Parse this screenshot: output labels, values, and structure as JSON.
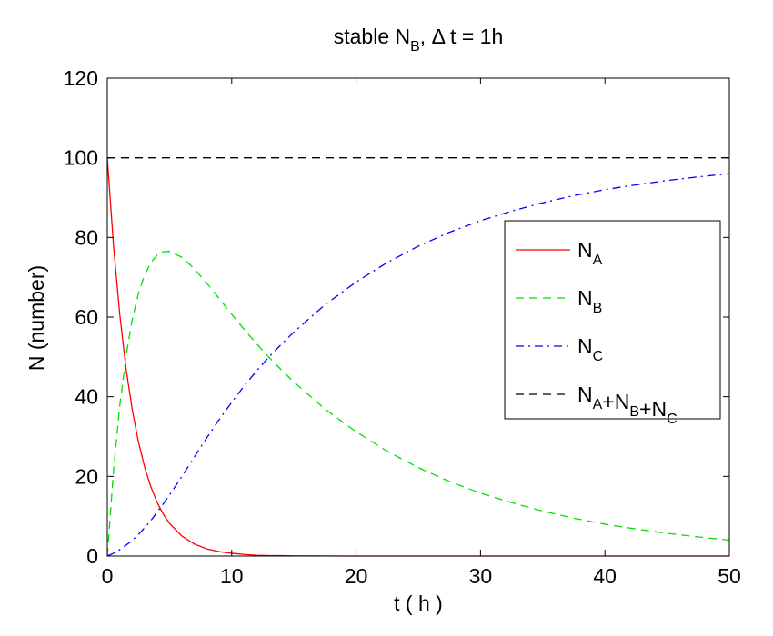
{
  "chart_data": {
    "type": "line",
    "title": {
      "prefix": "stable N",
      "sub": "B",
      "suffix": ", Δ t = 1h"
    },
    "xlabel": "t ( h )",
    "ylabel": "N (number)",
    "xlim": [
      0,
      50
    ],
    "ylim": [
      0,
      120
    ],
    "xticks": [
      0,
      10,
      20,
      30,
      40,
      50
    ],
    "yticks": [
      0,
      20,
      40,
      60,
      80,
      100,
      120
    ],
    "grid": false,
    "legend_position": "right",
    "x": [
      0,
      0.5,
      1,
      1.5,
      2,
      2.5,
      3,
      3.5,
      4,
      4.5,
      5,
      6,
      7,
      8,
      9,
      10,
      11,
      12,
      13,
      14,
      15,
      17.5,
      20,
      22.5,
      25,
      27.5,
      30,
      32.5,
      35,
      37.5,
      40,
      42.5,
      45,
      47.5,
      50
    ],
    "series": [
      {
        "name": "N_A",
        "legend_parts": [
          [
            "N",
            "A"
          ]
        ],
        "color": "#ff0000",
        "dash": "solid",
        "values": [
          100,
          77.9,
          60.7,
          47.2,
          36.8,
          28.7,
          22.3,
          17.4,
          13.5,
          10.5,
          8.2,
          5.0,
          3.0,
          1.8,
          1.1,
          0.7,
          0.4,
          0.2,
          0.1,
          0.1,
          0.05,
          0.02,
          0,
          0,
          0,
          0,
          0,
          0,
          0,
          0,
          0,
          0,
          0,
          0,
          0
        ]
      },
      {
        "name": "N_B",
        "legend_parts": [
          [
            "N",
            "B"
          ]
        ],
        "color": "#00e000",
        "dash": "dashed",
        "values": [
          0,
          21.4,
          37.7,
          50.1,
          59.3,
          65.9,
          70.6,
          73.7,
          75.5,
          76.4,
          76.5,
          75.0,
          72.1,
          68.5,
          64.6,
          60.7,
          56.9,
          53.3,
          49.9,
          46.7,
          43.7,
          36.9,
          31.2,
          26.3,
          22.2,
          18.7,
          15.8,
          13.4,
          11.3,
          9.5,
          8.0,
          6.8,
          5.7,
          4.8,
          4.0
        ]
      },
      {
        "name": "N_C",
        "legend_parts": [
          [
            "N",
            "C"
          ]
        ],
        "color": "#0000ff",
        "dash": "dashdot",
        "values": [
          0,
          0.7,
          1.6,
          2.7,
          3.9,
          5.4,
          7.1,
          8.9,
          11.0,
          13.1,
          15.3,
          20.0,
          24.9,
          29.7,
          34.3,
          38.6,
          42.7,
          46.5,
          50.0,
          53.2,
          56.25,
          63.1,
          68.8,
          73.7,
          77.8,
          81.3,
          84.2,
          86.6,
          88.7,
          90.5,
          92.0,
          93.2,
          94.3,
          95.2,
          96.0
        ]
      },
      {
        "name": "N_A+N_B+N_C",
        "legend_parts": [
          [
            "N",
            "A"
          ],
          [
            "+N",
            "B"
          ],
          [
            "+N",
            "C"
          ]
        ],
        "color": "#000000",
        "dash": "dashed",
        "values": [
          100,
          100,
          100,
          100,
          100,
          100,
          100,
          100,
          100,
          100,
          100,
          100,
          100,
          100,
          100,
          100,
          100,
          100,
          100,
          100,
          100,
          100,
          100,
          100,
          100,
          100,
          100,
          100,
          100,
          100,
          100,
          100,
          100,
          100,
          100
        ]
      }
    ]
  }
}
